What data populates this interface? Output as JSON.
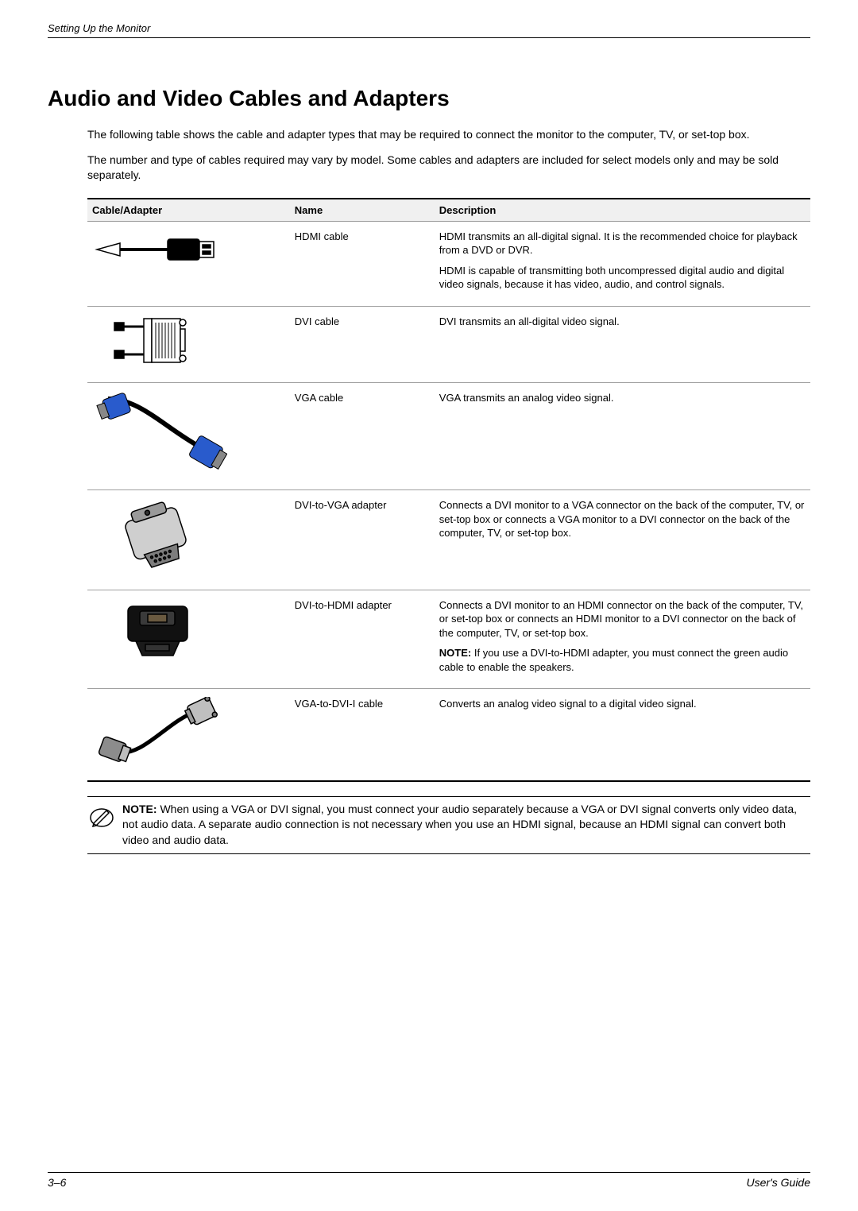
{
  "header": {
    "running_title": "Setting Up the Monitor"
  },
  "section": {
    "title": "Audio and Video Cables and Adapters",
    "intro1": "The following table shows the cable and adapter types that may be required to connect the monitor to the computer, TV, or set-top box.",
    "intro2": "The number and type of cables required may vary by model. Some cables and adapters are included for select models only and may be sold separately."
  },
  "table": {
    "headers": {
      "col1": "Cable/Adapter",
      "col2": "Name",
      "col3": "Description"
    },
    "rows": [
      {
        "icon": "hdmi-cable",
        "name": "HDMI cable",
        "desc": [
          {
            "bold": "",
            "text": "HDMI transmits an all-digital signal. It is the recommended choice for playback from a DVD or DVR."
          },
          {
            "bold": "",
            "text": "HDMI is capable of transmitting both uncompressed digital audio and digital video signals, because it has video, audio, and control signals."
          }
        ]
      },
      {
        "icon": "dvi-cable",
        "name": "DVI cable",
        "desc": [
          {
            "bold": "",
            "text": "DVI transmits an all-digital video signal."
          }
        ]
      },
      {
        "icon": "vga-cable",
        "name": "VGA cable",
        "desc": [
          {
            "bold": "",
            "text": "VGA transmits an analog video signal."
          }
        ]
      },
      {
        "icon": "dvi-vga-adapter",
        "name": "DVI-to-VGA adapter",
        "desc": [
          {
            "bold": "",
            "text": "Connects a DVI monitor to a VGA connector on the back of the computer, TV, or set-top box or connects a VGA monitor to a DVI connector on the back of the computer, TV, or set-top box."
          }
        ]
      },
      {
        "icon": "dvi-hdmi-adapter",
        "name": "DVI-to-HDMI adapter",
        "desc": [
          {
            "bold": "",
            "text": "Connects a DVI monitor to an HDMI connector on the back of the computer, TV, or set-top box or connects an HDMI monitor to a DVI connector on the back of the computer, TV, or set-top box."
          },
          {
            "bold": "NOTE:",
            "text": " If you use a DVI-to-HDMI adapter, you must connect the green audio cable to enable the speakers."
          }
        ]
      },
      {
        "icon": "vga-dvi-cable",
        "name": "VGA-to-DVI-I cable",
        "desc": [
          {
            "bold": "",
            "text": "Converts an analog video signal to a digital video signal."
          }
        ]
      }
    ]
  },
  "note": {
    "label": "NOTE:",
    "text": " When using a VGA or DVI signal, you must connect your audio separately because a VGA or DVI signal converts only video data, not audio data. A separate audio connection is not necessary when you use an HDMI signal, because an HDMI signal can convert both video and audio data."
  },
  "footer": {
    "left": "3–6",
    "right": "User's Guide"
  },
  "style": {
    "page_bg": "#ffffff",
    "text_color": "#000000",
    "header_row_bg": "#f0f0f0",
    "rule_color": "#000000",
    "row_border": "#a0a0a0",
    "title_fontsize": 28,
    "body_fontsize": 14,
    "table_fontsize": 13,
    "vga_blue": "#295bcc"
  }
}
